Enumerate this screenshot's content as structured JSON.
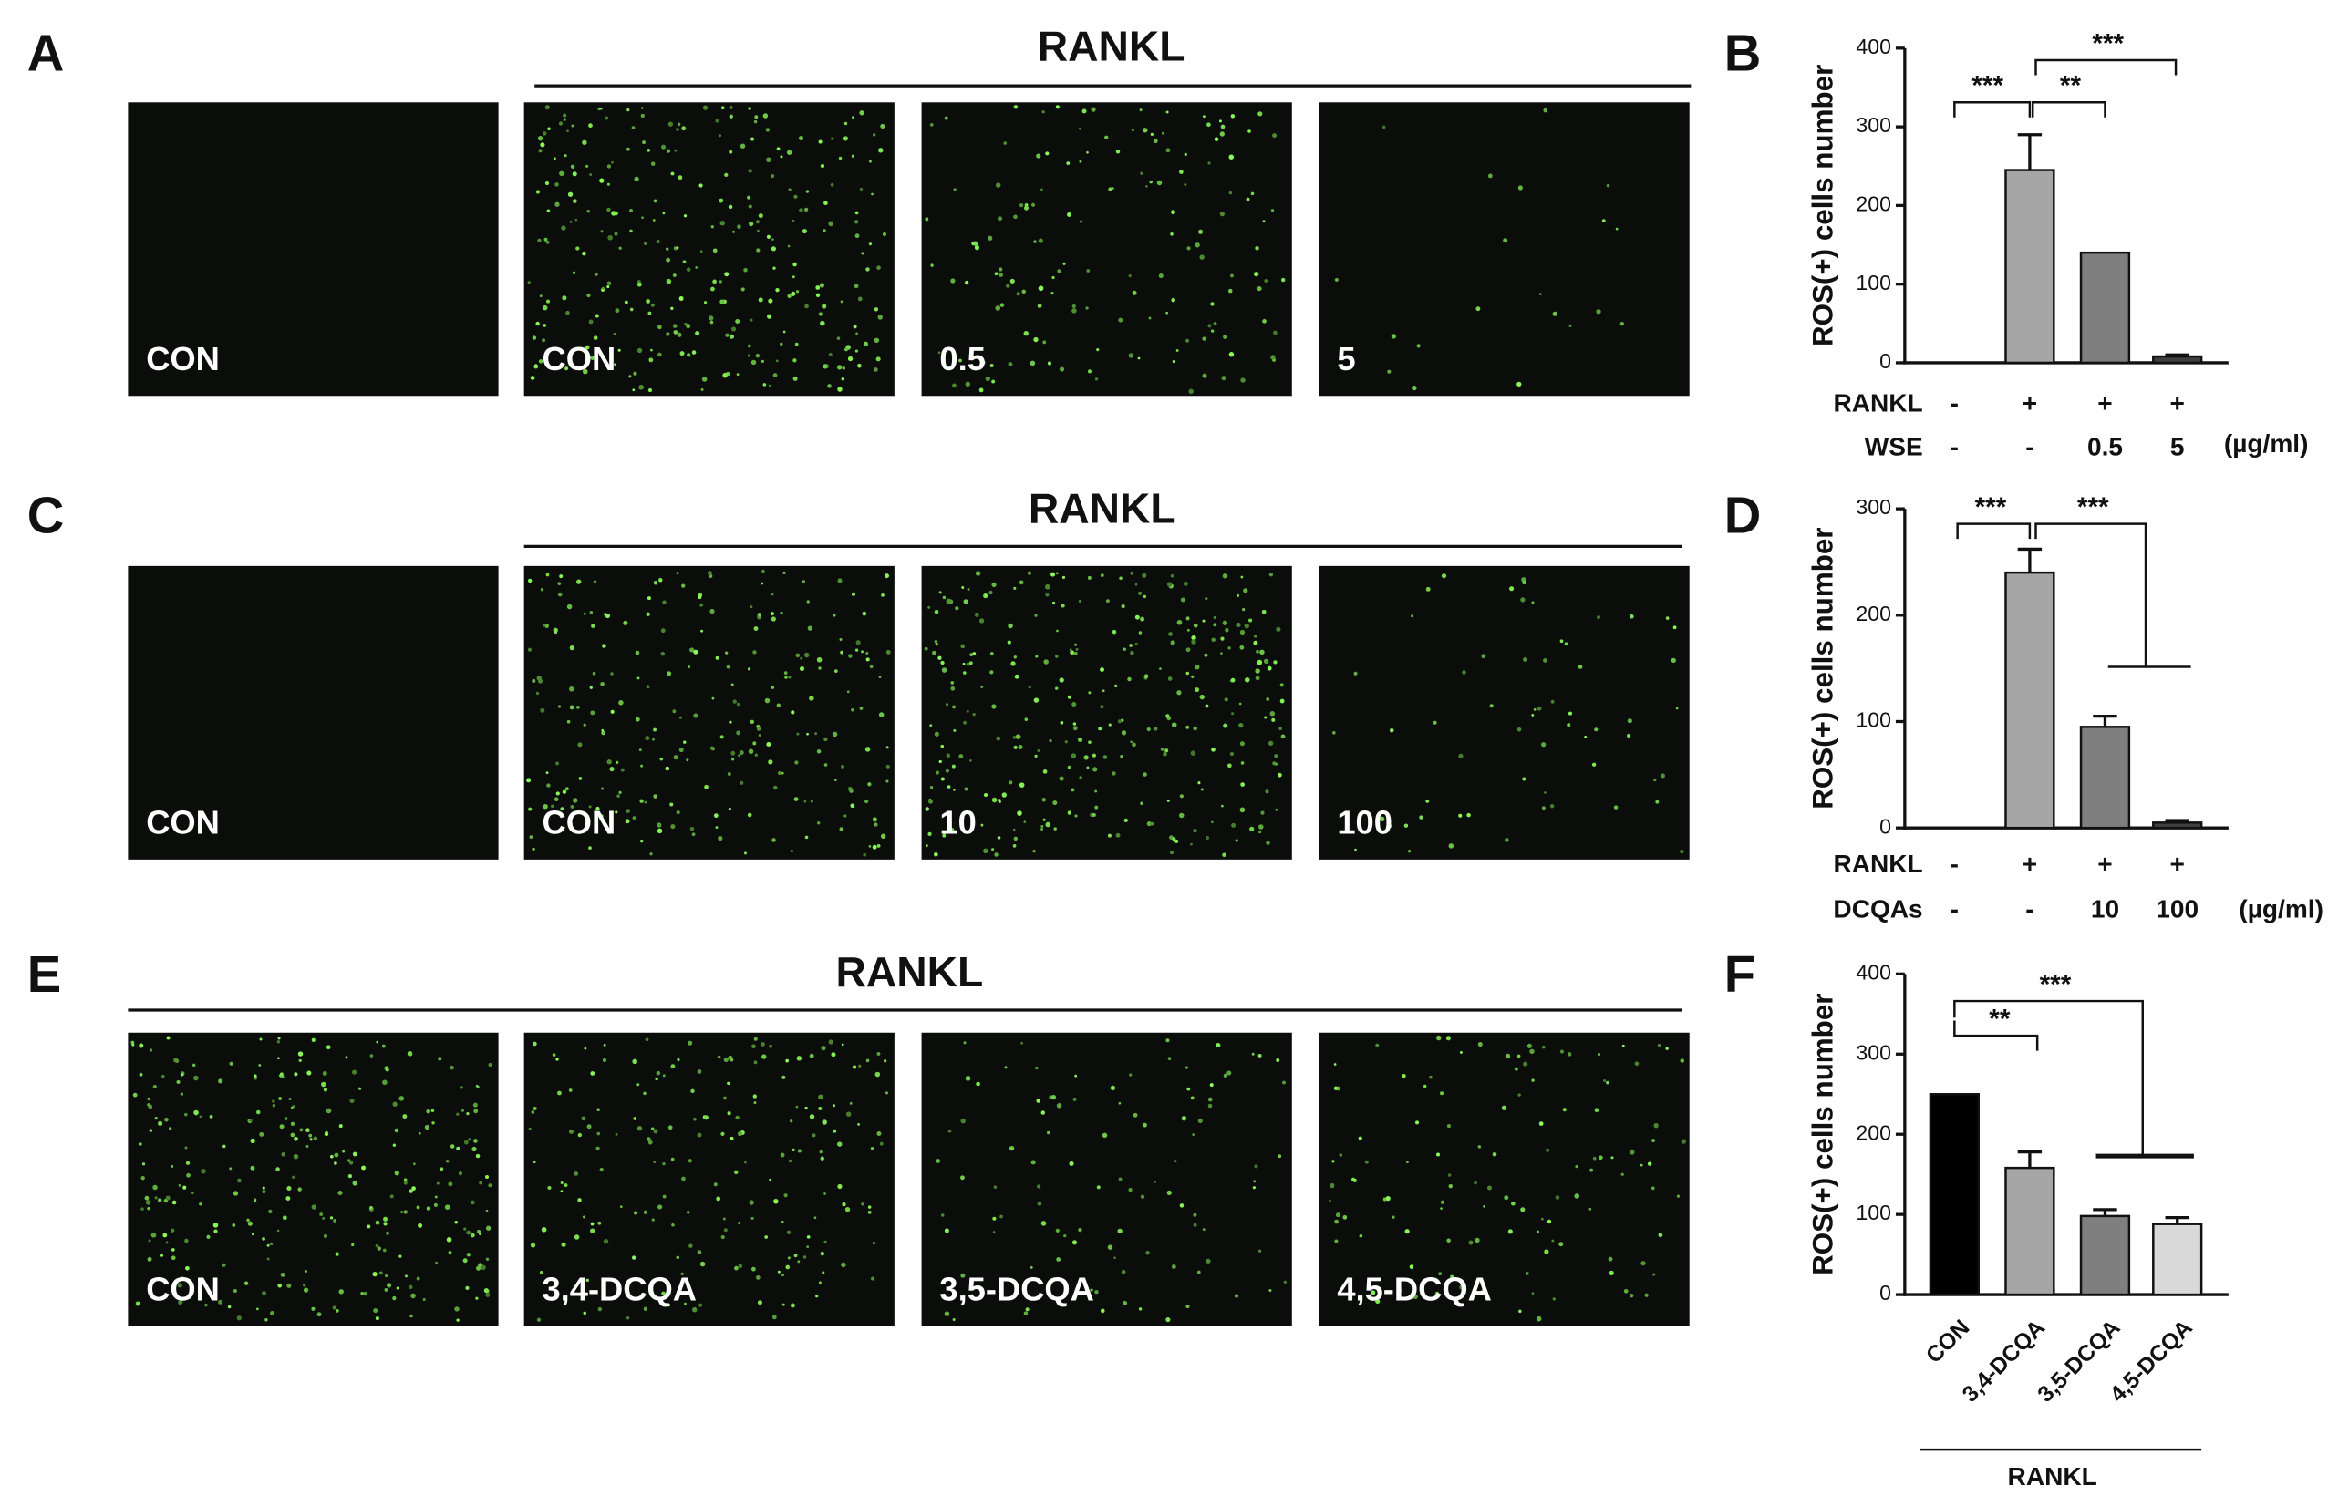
{
  "panels": [
    {
      "letter": "A",
      "header": "RANKL",
      "images": [
        "CON",
        "CON",
        "0.5",
        "5"
      ]
    },
    {
      "letter": "C",
      "header": "RANKL",
      "images": [
        "CON",
        "CON",
        "10",
        "100"
      ]
    },
    {
      "letter": "E",
      "header": "RANKL",
      "images": [
        "CON",
        "3,4-DCQA",
        "3,5-DCQA",
        "4,5-DCQA"
      ]
    }
  ],
  "chart_data": [
    {
      "type": "bar",
      "letter": "B",
      "ylabel": "ROS(+) cells number",
      "categories": [
        null,
        null,
        null,
        null
      ],
      "values": [
        0,
        245,
        140,
        8
      ],
      "errors": [
        0,
        45,
        0,
        2
      ],
      "colors": [
        "#a6a6a6",
        "#a6a6a6",
        "#7f7f7f",
        "#404040"
      ],
      "ylim": [
        0,
        400
      ],
      "yticks": [
        0,
        100,
        200,
        300,
        400
      ],
      "rows": [
        {
          "name": "RANKL",
          "values": [
            "-",
            "+",
            "+",
            "+"
          ]
        },
        {
          "name": "WSE",
          "values": [
            "-",
            "-",
            "0.5",
            "5"
          ]
        }
      ],
      "unit": "(µg/ml)",
      "annotations": [
        "***",
        "**",
        "***"
      ]
    },
    {
      "type": "bar",
      "letter": "D",
      "ylabel": "ROS(+) cells number",
      "categories": [
        null,
        null,
        null,
        null
      ],
      "values": [
        0,
        240,
        95,
        5
      ],
      "errors": [
        0,
        22,
        10,
        2
      ],
      "colors": [
        "#a6a6a6",
        "#a6a6a6",
        "#7f7f7f",
        "#404040"
      ],
      "ylim": [
        0,
        300
      ],
      "yticks": [
        0,
        100,
        200,
        300
      ],
      "rows": [
        {
          "name": "RANKL",
          "values": [
            "-",
            "+",
            "+",
            "+"
          ]
        },
        {
          "name": "DCQAs",
          "values": [
            "-",
            "-",
            "10",
            "100"
          ]
        }
      ],
      "unit": "(µg/ml)",
      "annotations": [
        "***",
        "***"
      ]
    },
    {
      "type": "bar",
      "letter": "F",
      "ylabel": "ROS(+) cells number",
      "categories": [
        "CON",
        "3,4-DCQA",
        "3,5-DCQA",
        "4,5-DCQA"
      ],
      "values": [
        250,
        158,
        98,
        88
      ],
      "errors": [
        0,
        20,
        8,
        8
      ],
      "colors": [
        "#000000",
        "#a6a6a6",
        "#7f7f7f",
        "#d9d9d9"
      ],
      "ylim": [
        0,
        400
      ],
      "yticks": [
        0,
        100,
        200,
        300,
        400
      ],
      "group_label": "RANKL",
      "annotations": [
        "**",
        "***"
      ]
    }
  ]
}
